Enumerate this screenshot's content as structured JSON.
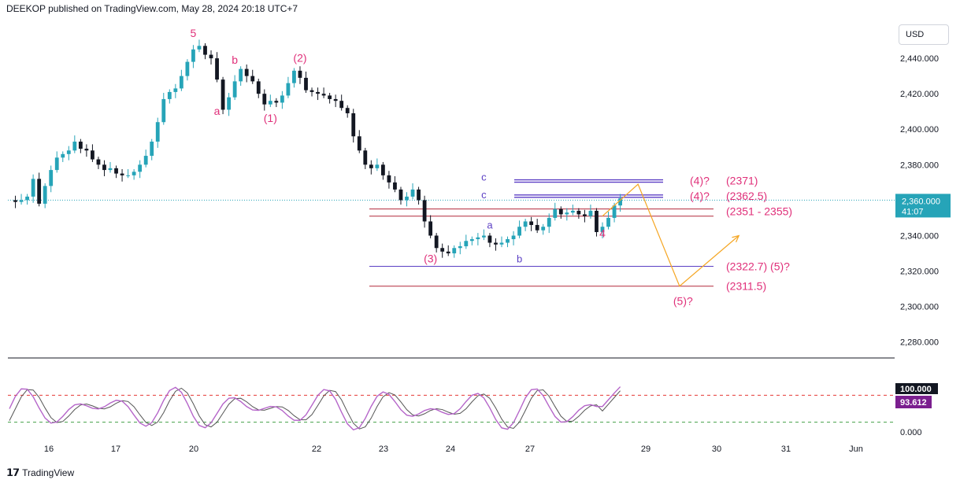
{
  "header": {
    "text": "DEEKOP published on TradingView.com, May 28, 2024 20:18 UTC+7"
  },
  "currency": "USD",
  "footer": {
    "brand": "TradingView"
  },
  "price_badge": {
    "price": "2,360.000",
    "timer": "41:07"
  },
  "osc_badge": {
    "top": "100.000",
    "value": "93.612"
  },
  "colors": {
    "up": "#26a4b8",
    "down": "#131722",
    "pink": "#e0307a",
    "blue": "#5b3fc4",
    "red_line": "#b2283a",
    "projection": "#f5a623",
    "osc_k": "#b565c9",
    "osc_d": "#555555"
  },
  "chart_data": {
    "type": "candlestick",
    "title": "",
    "currency": "USD",
    "y_ticks": [
      "2,440.000",
      "2,420.000",
      "2,400.000",
      "2,380.000",
      "2,360.000",
      "2,340.000",
      "2,320.000",
      "2,300.000",
      "2,280.000"
    ],
    "ylim": [
      2271,
      2464
    ],
    "x_ticks": [
      "16",
      "17",
      "20",
      "22",
      "23",
      "24",
      "27",
      "29",
      "30",
      "31",
      "Jun"
    ],
    "current_price": 2360.0,
    "price_path": [
      [
        0,
        2360
      ],
      [
        1,
        2359
      ],
      [
        2,
        2360
      ],
      [
        3,
        2362
      ],
      [
        4,
        2372
      ],
      [
        5,
        2358
      ],
      [
        6,
        2368
      ],
      [
        7,
        2377
      ],
      [
        8,
        2384
      ],
      [
        9,
        2386
      ],
      [
        10,
        2388
      ],
      [
        11,
        2393
      ],
      [
        12,
        2389
      ],
      [
        13,
        2388
      ],
      [
        14,
        2383
      ],
      [
        15,
        2380
      ],
      [
        16,
        2377
      ],
      [
        17,
        2378
      ],
      [
        18,
        2375
      ],
      [
        19,
        2374
      ],
      [
        20,
        2374
      ],
      [
        21,
        2376
      ],
      [
        22,
        2380
      ],
      [
        23,
        2385
      ],
      [
        24,
        2393
      ],
      [
        25,
        2404
      ],
      [
        26,
        2417
      ],
      [
        27,
        2421
      ],
      [
        28,
        2423
      ],
      [
        29,
        2430
      ],
      [
        30,
        2438
      ],
      [
        31,
        2445
      ],
      [
        32,
        2447
      ],
      [
        33,
        2442
      ],
      [
        34,
        2440
      ],
      [
        35,
        2428
      ],
      [
        36,
        2411
      ],
      [
        37,
        2418
      ],
      [
        38,
        2427
      ],
      [
        39,
        2434
      ],
      [
        40,
        2430
      ],
      [
        41,
        2427
      ],
      [
        42,
        2420
      ],
      [
        43,
        2414
      ],
      [
        44,
        2416
      ],
      [
        45,
        2415
      ],
      [
        46,
        2419
      ],
      [
        47,
        2426
      ],
      [
        48,
        2433
      ],
      [
        49,
        2429
      ],
      [
        50,
        2422
      ],
      [
        51,
        2421
      ],
      [
        52,
        2420
      ],
      [
        53,
        2419
      ],
      [
        54,
        2417
      ],
      [
        55,
        2416
      ],
      [
        56,
        2412
      ],
      [
        57,
        2409
      ],
      [
        58,
        2396
      ],
      [
        59,
        2388
      ],
      [
        60,
        2380
      ],
      [
        61,
        2378
      ],
      [
        62,
        2380
      ],
      [
        63,
        2374
      ],
      [
        64,
        2370
      ],
      [
        65,
        2366
      ],
      [
        66,
        2360
      ],
      [
        67,
        2362
      ],
      [
        68,
        2366
      ],
      [
        69,
        2360
      ],
      [
        70,
        2348
      ],
      [
        71,
        2340
      ],
      [
        72,
        2333
      ],
      [
        73,
        2331
      ],
      [
        74,
        2330
      ],
      [
        75,
        2333
      ],
      [
        76,
        2334
      ],
      [
        77,
        2337
      ],
      [
        78,
        2338
      ],
      [
        79,
        2339
      ],
      [
        80,
        2340
      ],
      [
        81,
        2336
      ],
      [
        82,
        2335
      ],
      [
        83,
        2336
      ],
      [
        84,
        2338
      ],
      [
        85,
        2340
      ],
      [
        86,
        2345
      ],
      [
        87,
        2348
      ],
      [
        88,
        2346
      ],
      [
        89,
        2343
      ],
      [
        90,
        2345
      ],
      [
        91,
        2350
      ],
      [
        92,
        2355
      ],
      [
        93,
        2352
      ],
      [
        94,
        2353
      ],
      [
        95,
        2354
      ],
      [
        96,
        2352
      ],
      [
        97,
        2351
      ],
      [
        98,
        2354
      ],
      [
        99,
        2342
      ],
      [
        100,
        2345
      ],
      [
        101,
        2350
      ],
      [
        102,
        2357
      ],
      [
        103,
        2361
      ]
    ],
    "wave_labels": [
      {
        "text": "5",
        "color": "pink",
        "t": 31,
        "price": 2452
      },
      {
        "text": "a",
        "color": "pink",
        "t": 35,
        "price": 2408
      },
      {
        "text": "b",
        "color": "pink",
        "t": 38,
        "price": 2437
      },
      {
        "text": "(1)",
        "color": "pink",
        "t": 44,
        "price": 2404
      },
      {
        "text": "(2)",
        "color": "pink",
        "t": 49,
        "price": 2438
      },
      {
        "text": "(3)",
        "color": "pink",
        "t": 71,
        "price": 2325
      },
      {
        "text": "a",
        "color": "blue",
        "t": 81,
        "price": 2344
      },
      {
        "text": "b",
        "color": "blue",
        "t": 86,
        "price": 2325
      },
      {
        "text": "c",
        "color": "blue",
        "t": 80,
        "price": 2371
      },
      {
        "text": "c",
        "color": "blue",
        "t": 80,
        "price": 2361
      },
      {
        "text": "4",
        "color": "pink",
        "t": 100,
        "price": 2339
      }
    ],
    "levels": [
      {
        "price": 2371,
        "color": "blue",
        "label": "(2371)",
        "prefix": "(4)?"
      },
      {
        "price": 2362.5,
        "color": "blue",
        "label": "(2362.5)",
        "prefix": "(4)?"
      },
      {
        "price": 2351,
        "color": "red",
        "label": "(2351 - 2355)",
        "upper": 2355
      },
      {
        "price": 2322.7,
        "color": "blue",
        "label": "(2322.7) (5)?"
      },
      {
        "price": 2311.5,
        "color": "red",
        "label": "(2311.5)"
      }
    ],
    "projection": {
      "color": "projection",
      "points": [
        [
          100,
          2351
        ],
        [
          106,
          2369
        ],
        [
          113,
          2311.5
        ],
        [
          123,
          2340
        ]
      ],
      "label": "(5)?",
      "label_t": 113,
      "label_price": 2301
    },
    "oscillator": {
      "upper_level": 80,
      "lower_level": 20,
      "current": 93.612,
      "labels": [
        "100.000",
        "0.000"
      ]
    }
  }
}
